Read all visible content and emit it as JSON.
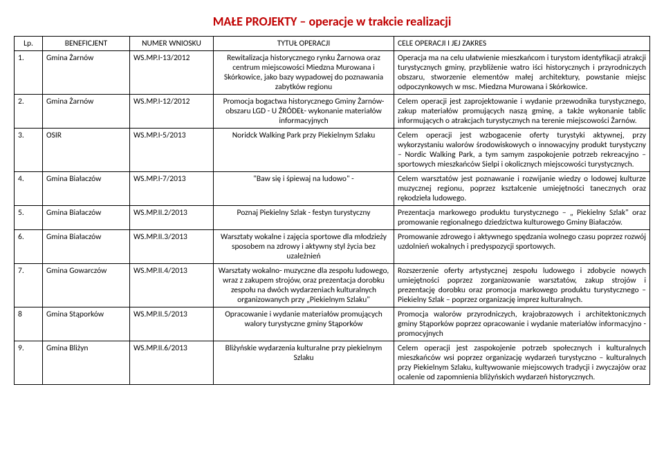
{
  "title": "MAŁE PROJEKTY – operacje w trakcie realizacji",
  "headers": {
    "lp": "Lp.",
    "beneficjent": "BENEFICJENT",
    "numer": "NUMER WNIOSKU",
    "tytul": "TYTUŁ OPERACJI",
    "cele": "CELE OPERACJI I JEJ ZAKRES"
  },
  "rows": [
    {
      "lp": "1.",
      "ben": "Gmina Żarnów",
      "num": "WS.MP.I-13/2012",
      "tyt": "Rewitalizacja historycznego rynku Żarnowa oraz centrum miejscowości Miedzna Murowana i Skórkowice, jako bazy wypadowej do poznawania zabytków regionu",
      "cel": "Operacja ma na celu ułatwienie mieszkańcom i turystom identyfikacji atrakcji turystycznych gminy, przybliżenie watro iści historycznych i przyrodniczych obszaru, stworzenie elementów małej architektury, powstanie miejsc odpoczynkowych w msc. Miedzna Murowana i Skórkowice."
    },
    {
      "lp": "2.",
      "ben": "Gmina Żarnów",
      "num": "WS.MP.I-12/2012",
      "tyt": "Promocja bogactwa historycznego Gminy Żarnów- obszaru LGD - U ŹRÓDEŁ- wykonanie materiałów informacyjnych",
      "cel": "Celem operacji jest zaprojektowanie i wydanie przewodnika turystycznego, zakup materiałów promujących naszą gminę, a także wykonanie tablic informujących o atrakcjach turystycznych na terenie miejscowości Żarnów."
    },
    {
      "lp": "3.",
      "ben": "OSIR",
      "num": "WS.MP.I-5/2013",
      "tyt": "Noridck Walking Park przy Piekielnym Szlaku",
      "cel": "Celem operacji jest wzbogacenie oferty turystyki aktywnej, przy wykorzystaniu walorów środowiskowych o innowacyjny produkt turystyczny – Nordic Walking Park, a tym samym zaspokojenie potrzeb rekreacyjno – sportowych mieszkańców Sielpi i okolicznych miejscowości turystycznych."
    },
    {
      "lp": "4.",
      "ben": "Gmina Białaczów",
      "num": "WS.MP.I-7/2013",
      "tyt": "\"Baw się i śpiewaj na ludowo\" -",
      "cel": "Celem warsztatów jest poznawanie i rozwijanie wiedzy o lodowej kulturze muzycznej regionu, poprzez kształcenie umiejętności tanecznych oraz rękodzieła ludowego."
    },
    {
      "lp": "5.",
      "ben": "Gmina Białaczów",
      "num": "WS.MP.II.2/2013",
      "tyt": "Poznaj Piekielny Szlak - festyn turystyczny",
      "cel": "Prezentacja markowego produktu turystycznego – „ Piekielny Szlak\" oraz promowanie regionalnego dziedzictwa kulturowego Gminy Białaczów."
    },
    {
      "lp": "6.",
      "ben": "Gmina Białaczów",
      "num": "WS.MP.II.3/2013",
      "tyt": "Warsztaty wokalne i zajęcia sportowe dla młodzieży sposobem na zdrowy i aktywny styl życia bez uzależnień",
      "cel": "Promowanie zdrowego i aktywnego spędzania wolnego czasu poprzez rozwój uzdolnień wokalnych i predyspozycji sportowych."
    },
    {
      "lp": "7.",
      "ben": "Gmina Gowarczów",
      "num": "WS.MP.II.4/2013",
      "tyt": "Warsztaty wokalno- muzyczne dla zespołu ludowego, wraz z zakupem strojów, oraz prezentacja dorobku zespołu na dwóch wydarzeniach kulturalnych organizowanych przy „Piekielnym Szlaku\"",
      "cel": "Rozszerzenie oferty artystycznej zespołu ludowego i zdobycie nowych umiejętności poprzez zorganizowanie warsztatów, zakup strojów i prezentację dorobku oraz promocja markowego produktu turystycznego – Piekielny Szlak – poprzez organizację imprez kulturalnych."
    },
    {
      "lp": "8",
      "ben": "Gmina Stąporków",
      "num": "WS.MP.II.5/2013",
      "tyt": "Opracowanie i wydanie materiałów promujących walory turystyczne gminy Stąporków",
      "cel": "Promocja walorów przyrodniczych, krajobrazowych i architektonicznych gminy Stąporków poprzez opracowanie i wydanie materiałów informacyjno - promocyjnych"
    },
    {
      "lp": "9.",
      "ben": "Gmina Bliżyn",
      "num": "WS.MP.II.6/2013",
      "tyt": "Bliżyńskie wydarzenia kulturalne przy piekielnym Szlaku",
      "cel": "Celem operacji jest zaspokojenie potrzeb społecznych i kulturalnych mieszkańców wsi poprzez organizację wydarzeń turystyczno – kulturalnych przy Piekielnym Szlaku, kultywowanie miejscowych tradycji i zwyczajów oraz ocalenie od zapomnienia bliżyńskich wydarzeń historycznych."
    }
  ],
  "styles": {
    "title_color": "#c00000",
    "border_color": "#000000",
    "background": "#ffffff",
    "font_size_body": 11.5,
    "font_size_title": 18
  }
}
